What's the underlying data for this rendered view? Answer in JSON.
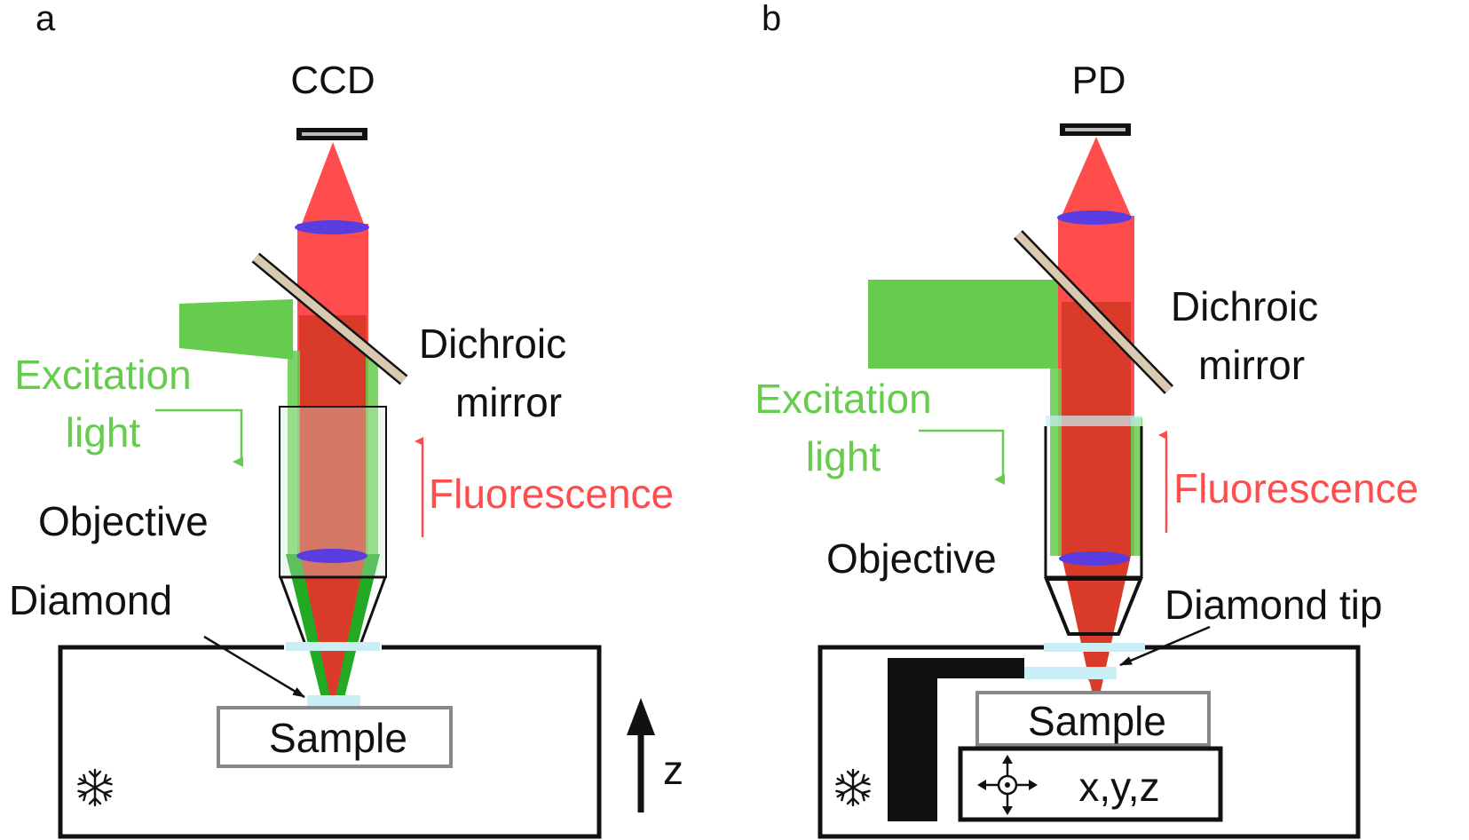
{
  "panels": [
    {
      "panel_label": "a",
      "detector": "CCD",
      "mirror_line1": "Dichroic",
      "mirror_line2": "mirror",
      "excitation_line1": "Excitation",
      "excitation_line2": "light",
      "fluorescence": "Fluorescence",
      "objective": "Objective",
      "diamond": "Diamond",
      "sample": "Sample",
      "stage_axis": "z"
    },
    {
      "panel_label": "b",
      "detector": "PD",
      "mirror_line1": "Dichroic",
      "mirror_line2": "mirror",
      "excitation_line1": "Excitation",
      "excitation_line2": "light",
      "fluorescence": "Fluorescence",
      "objective": "Objective",
      "diamond": "Diamond tip",
      "sample": "Sample",
      "stage_axis": "x,y,z"
    }
  ],
  "icons": [
    "snowflake-icon",
    "xyz-stage-icon",
    "up-arrow-icon"
  ],
  "colors": {
    "fluorescence": "#ff4c4c",
    "fluorescence_beam": "#d93a2a",
    "excitation": "#66cc4d",
    "lens": "#5a3de0",
    "mirror": "#d8c9b0",
    "diamond": "#c9eef5",
    "text": "#111111"
  }
}
